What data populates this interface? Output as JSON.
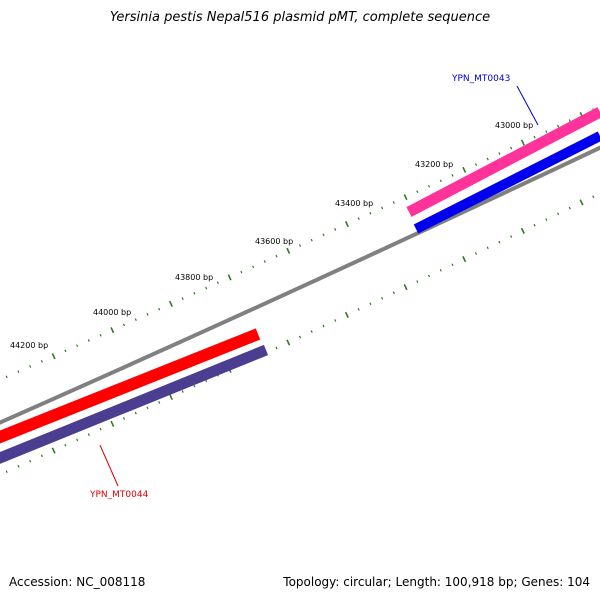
{
  "title": "Yersinia pestis Nepal516 plasmid pMT, complete sequence",
  "footer": {
    "accession": "Accession: NC_008118",
    "summary": "Topology: circular; Length: 100,918 bp; Genes: 104"
  },
  "map": {
    "backbone_color": "#808080",
    "tick_color": "#2a7a1f",
    "position_labels": [
      "43000 bp",
      "43200 bp",
      "43400 bp",
      "43600 bp",
      "43800 bp",
      "44000 bp",
      "44200 bp"
    ],
    "features": [
      {
        "id": "pink-strip",
        "color": "#ff3399"
      },
      {
        "id": "blue-strip",
        "color": "#0000ee"
      },
      {
        "id": "red-strip",
        "color": "#ff0000"
      },
      {
        "id": "purple-strip",
        "color": "#4b3d8f"
      }
    ],
    "gene_labels": [
      {
        "text": "YPN_MT0043",
        "color": "#0000cc"
      },
      {
        "text": "YPN_MT0044",
        "color": "#dd0000"
      }
    ]
  }
}
